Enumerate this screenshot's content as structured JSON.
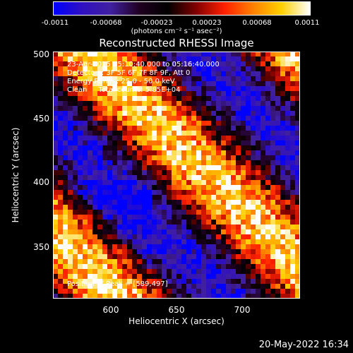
{
  "colorbar": {
    "ticks": [
      "-0.0011",
      "-0.00068",
      "-0.00023",
      "0.00023",
      "0.00068",
      "0.0011"
    ],
    "units": "(photons cm⁻² s⁻¹ asec⁻²)"
  },
  "title": "Reconstructed RHESSI Image",
  "annotations": {
    "time": "23-Apr-2015 05:10:40.000 to 05:16:40.000",
    "detectors": "Detectors: 3F 5F 6F 7F 8F 9F, Att 0",
    "energy": "Energy Range: 25.0 - 50.0 keV",
    "clean": "Clean     Total counts: 5.85E+04",
    "peak": "Position of Peak = [589,497]"
  },
  "axes": {
    "xlabel": "Heliocentric X (arcsec)",
    "ylabel": "Heliocentric Y (arcsec)",
    "xticks": [
      "600",
      "650",
      "700"
    ],
    "yticks": [
      "500",
      "450",
      "400",
      "350"
    ],
    "xlim": [
      555,
      750
    ],
    "ylim": [
      305,
      502
    ]
  },
  "footer": {
    "timestamp": "20-May-2022 16:34"
  },
  "colors": {
    "colormap": [
      "#0000ff",
      "#3010c0",
      "#4020a0",
      "#200020",
      "#000000",
      "#800000",
      "#ff2000",
      "#ff8000",
      "#ffd000",
      "#ffffff"
    ]
  }
}
